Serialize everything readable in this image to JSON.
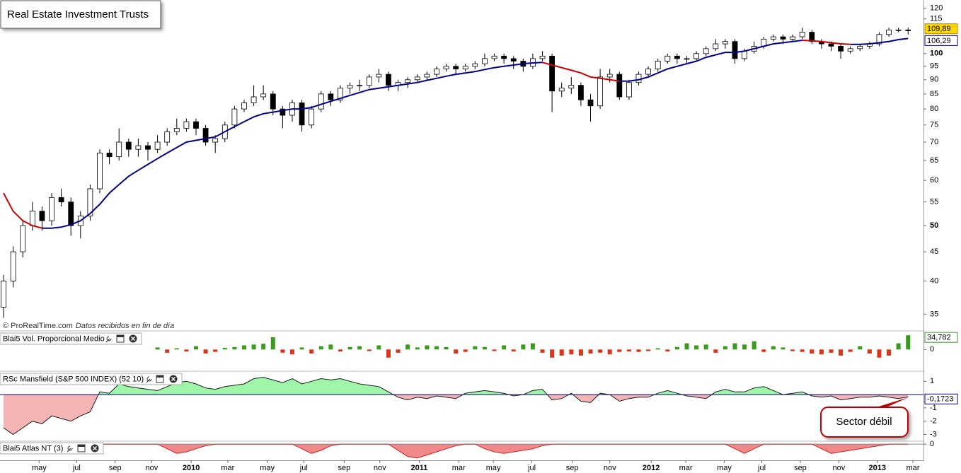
{
  "chart_data": [
    {
      "type": "candlestick",
      "title": "Real Estate Investment Trusts",
      "credit": "© ProRealTime.com",
      "credit_note": "Datos recibidos en fin de día",
      "open": [
        36,
        40,
        45,
        50,
        53,
        51,
        56,
        55,
        50,
        52,
        58,
        67,
        66,
        70,
        68,
        69,
        68,
        70,
        73,
        74,
        76,
        74,
        70,
        71,
        75,
        80,
        82,
        84,
        85,
        80,
        78,
        82,
        75,
        80,
        85,
        83,
        87,
        88,
        88,
        91,
        92,
        88,
        89,
        90,
        91,
        92,
        94,
        95,
        94,
        95,
        96,
        98,
        99,
        98,
        97,
        95,
        98,
        99,
        86,
        87,
        88,
        83,
        81,
        91,
        92,
        84,
        89,
        92,
        94,
        97,
        99,
        98,
        98,
        100,
        102,
        104,
        105,
        98,
        101,
        103,
        106,
        107,
        106,
        107,
        109,
        105,
        104,
        103,
        101,
        102,
        103,
        104,
        108,
        110,
        110
      ],
      "high": [
        41,
        46,
        51,
        55,
        54,
        57,
        58,
        56,
        53,
        59,
        68,
        68,
        74,
        71,
        71,
        70,
        72,
        74,
        77,
        77,
        77,
        75,
        72,
        76,
        81,
        83,
        88,
        88,
        86,
        81,
        83,
        83,
        81,
        86,
        86,
        88,
        89,
        90,
        92,
        94,
        93,
        90,
        91,
        92,
        93,
        95,
        96,
        96,
        96,
        97,
        100,
        100,
        100,
        99,
        98,
        100,
        101,
        100,
        89,
        91,
        89,
        85,
        94,
        94,
        93,
        90,
        93,
        95,
        98,
        100,
        100,
        99,
        101,
        103,
        106,
        106,
        106,
        102,
        105,
        107,
        108,
        108,
        108,
        111,
        110,
        106,
        105,
        104,
        103,
        104,
        105,
        109,
        111,
        111,
        111
      ],
      "low": [
        34.5,
        39,
        44,
        49,
        49,
        50,
        54,
        48,
        47.5,
        51,
        57,
        64,
        65,
        66,
        66,
        65,
        67,
        69,
        72,
        73,
        72,
        69,
        67,
        70,
        74,
        79,
        81,
        83,
        78,
        74,
        76,
        73,
        74,
        79,
        81,
        82,
        85,
        86,
        87,
        89,
        86,
        86,
        87,
        89,
        90,
        91,
        93,
        92,
        93,
        94,
        95,
        97,
        96,
        94,
        93,
        94,
        97,
        79,
        84,
        85,
        81,
        76,
        80,
        89,
        83,
        83,
        88,
        91,
        93,
        96,
        96,
        96,
        97,
        99,
        101,
        102,
        96,
        97,
        100,
        102,
        105,
        104,
        105,
        106,
        104,
        102,
        101,
        98,
        100,
        101,
        102,
        103,
        107,
        109,
        108
      ],
      "close": [
        40,
        45,
        50,
        53,
        51,
        56,
        55,
        50,
        52,
        58,
        67,
        66,
        70,
        68,
        69,
        68,
        70,
        73,
        74,
        76,
        74,
        70,
        71,
        75,
        80,
        82,
        84,
        85,
        80,
        78,
        82,
        75,
        80,
        85,
        83,
        87,
        88,
        88,
        91,
        92,
        88,
        89,
        90,
        91,
        92,
        94,
        95,
        94,
        95,
        96,
        98,
        99,
        98,
        97,
        95,
        98,
        99,
        86,
        87,
        88,
        83,
        81,
        91,
        92,
        84,
        89,
        92,
        94,
        97,
        99,
        98,
        98,
        100,
        102,
        104,
        105,
        98,
        101,
        103,
        106,
        107,
        106,
        107,
        109,
        105,
        104,
        103,
        101,
        102,
        103,
        104,
        108,
        110,
        110,
        109.89
      ],
      "last_close_label": "109,89",
      "up_color": "#ffffff",
      "down_color": "#000000",
      "label_color": "#ffd700",
      "moving_average": {
        "values": [
          57,
          53,
          51,
          50,
          49.5,
          49.5,
          49.7,
          50.2,
          51,
          52.5,
          54.5,
          57,
          59,
          61,
          62.5,
          64,
          65.5,
          67,
          68.5,
          70,
          70.5,
          71,
          71.5,
          73,
          74.5,
          76,
          77.5,
          78.5,
          79,
          79.5,
          80,
          80,
          80.5,
          81.5,
          82.5,
          83.5,
          84.5,
          85.5,
          86.5,
          87,
          87.5,
          88,
          88.5,
          89,
          89.8,
          90.5,
          91.3,
          92,
          92.5,
          93,
          93.8,
          94.5,
          95,
          95.5,
          96,
          96.3,
          96.5,
          95.5,
          94.5,
          93.5,
          92.5,
          91,
          90.5,
          90,
          89.5,
          89.5,
          90,
          91,
          92.5,
          94,
          95,
          96,
          97,
          98.5,
          99.5,
          100.5,
          100.5,
          101,
          102,
          103,
          104,
          104.5,
          105,
          105.5,
          105.3,
          105,
          104.5,
          104,
          103.8,
          103.8,
          104,
          104.5,
          105,
          105.8,
          106.29
        ],
        "last_label": "106,29",
        "rising_color": "#00008b",
        "falling_color": "#cc0000"
      },
      "log_scale": true,
      "ylim": [
        33,
        122
      ],
      "yticks": [
        35,
        40,
        45,
        50,
        55,
        60,
        65,
        70,
        75,
        80,
        85,
        90,
        95,
        100,
        115,
        120
      ],
      "xlim": [
        -0.37,
        95.6
      ],
      "xticks": [
        {
          "value": 3.7,
          "label": "may"
        },
        {
          "value": 7.6,
          "label": "jul"
        },
        {
          "value": 11.6,
          "label": "sep"
        },
        {
          "value": 15.4,
          "label": "nov"
        },
        {
          "value": 19.5,
          "label": "2010"
        },
        {
          "value": 23.3,
          "label": "mar"
        },
        {
          "value": 27.4,
          "label": "may"
        },
        {
          "value": 31.2,
          "label": "jul"
        },
        {
          "value": 35.4,
          "label": "sep"
        },
        {
          "value": 39.1,
          "label": "nov"
        },
        {
          "value": 43.2,
          "label": "2011"
        },
        {
          "value": 47.3,
          "label": "mar"
        },
        {
          "value": 50.9,
          "label": "may"
        },
        {
          "value": 54.9,
          "label": "jul"
        },
        {
          "value": 59.1,
          "label": "sep"
        },
        {
          "value": 63.0,
          "label": "nov"
        },
        {
          "value": 67.3,
          "label": "2012"
        },
        {
          "value": 70.9,
          "label": "mar"
        },
        {
          "value": 74.9,
          "label": "may"
        },
        {
          "value": 78.8,
          "label": "jul"
        },
        {
          "value": 82.8,
          "label": "sep"
        },
        {
          "value": 86.8,
          "label": "nov"
        },
        {
          "value": 90.8,
          "label": "2013"
        },
        {
          "value": 94.5,
          "label": "mar"
        }
      ]
    },
    {
      "type": "bar",
      "title": "Blai5 Vol. Proporcional Medio",
      "values": [
        null,
        null,
        null,
        null,
        null,
        null,
        null,
        null,
        null,
        null,
        null,
        null,
        null,
        null,
        null,
        null,
        5,
        -8,
        3,
        -5,
        8,
        -10,
        -6,
        4,
        6,
        10,
        12,
        14,
        30,
        -8,
        -12,
        5,
        -10,
        8,
        12,
        -5,
        6,
        8,
        -4,
        10,
        -20,
        -8,
        12,
        5,
        10,
        8,
        6,
        -10,
        -6,
        8,
        6,
        -4,
        10,
        -5,
        12,
        15,
        -8,
        -20,
        -15,
        -12,
        -15,
        -10,
        -8,
        -12,
        -6,
        -5,
        -6,
        -4,
        3,
        -5,
        6,
        15,
        10,
        12,
        -8,
        8,
        15,
        12,
        20,
        -6,
        8,
        5,
        -4,
        -6,
        -10,
        -12,
        -8,
        -15,
        -6,
        8,
        -10,
        -20,
        -15,
        15,
        34.782
      ],
      "last_label": "34,782",
      "positive_color": "#3a9a1e",
      "negative_color": "#d9361c",
      "ylim": [
        -48,
        42
      ],
      "yticks": [
        0
      ]
    },
    {
      "type": "area",
      "title": "RSc Mansfield (S&P 500 INDEX) (52 10)",
      "values": [
        -2.5,
        -3.0,
        -2.5,
        -2.0,
        -2.2,
        -1.6,
        -1.8,
        -2.0,
        -1.6,
        -1.3,
        0.2,
        0.1,
        0.8,
        0.6,
        0.5,
        0.4,
        0.3,
        0.6,
        0.9,
        1.0,
        0.8,
        0.5,
        0.4,
        0.6,
        0.7,
        0.8,
        1.2,
        1.3,
        1.1,
        0.9,
        1.2,
        0.8,
        1.0,
        1.2,
        1.1,
        1.2,
        1.0,
        0.8,
        0.7,
        0.6,
        0.2,
        -0.2,
        -0.4,
        -0.2,
        -0.3,
        -0.1,
        -0.2,
        -0.3,
        0.1,
        0.2,
        0.3,
        0.2,
        0.1,
        -0.1,
        0.0,
        0.3,
        0.4,
        -0.4,
        -0.3,
        0.1,
        -0.5,
        -0.6,
        0.1,
        0.0,
        -0.5,
        -0.3,
        -0.2,
        -0.2,
        0.1,
        0.3,
        0.1,
        -0.1,
        -0.2,
        -0.3,
        0.2,
        0.4,
        0.2,
        0.2,
        0.5,
        0.6,
        0.3,
        0.0,
        0.1,
        0.2,
        -0.1,
        -0.2,
        -0.1,
        -0.4,
        -0.3,
        -0.2,
        -0.2,
        -0.1,
        -0.2,
        -0.3,
        -0.1723
      ],
      "last_label": "-0,1723",
      "line_color": "#1a1a1a",
      "fill_above": "#9ff5a8",
      "fill_below": "#f5b5b5",
      "zero_color": "#00008b",
      "ylim": [
        -3.4,
        1.6
      ],
      "yticks": [
        1,
        -1,
        -2,
        -3
      ],
      "annotation": "Sector débil"
    },
    {
      "type": "area",
      "title": "Blai5 Atlas NT (3)",
      "values": [
        0,
        0,
        0,
        0,
        0,
        0,
        0,
        0,
        0,
        0,
        0,
        0,
        0,
        0,
        0,
        0,
        0,
        -0.3,
        -0.6,
        -0.5,
        -0.3,
        -0.1,
        0,
        0,
        0,
        0,
        0,
        0,
        0,
        0,
        0,
        -0.3,
        -0.6,
        -0.4,
        -0.1,
        0,
        0,
        0,
        0,
        0,
        0,
        -0.4,
        -0.8,
        -0.9,
        -0.7,
        -0.5,
        -0.3,
        -0.1,
        0,
        0,
        -0.3,
        -0.5,
        -0.6,
        -0.5,
        -0.4,
        -0.3,
        -0.1,
        0,
        0,
        0,
        0,
        0,
        0,
        0,
        0,
        0,
        0,
        0,
        0,
        0,
        0,
        0,
        0,
        0,
        0,
        0,
        -0.3,
        -0.6,
        -0.3,
        0,
        0,
        0,
        0,
        0,
        0,
        -0.3,
        -0.6,
        -0.5,
        -0.4,
        -0.3,
        -0.2,
        -0.1,
        0,
        0,
        0
      ],
      "line_color": "#cc2222",
      "fill_above": "#9ff5a8",
      "fill_below": "#f08a8a",
      "zero_color": "#888888",
      "ylim": [
        -1,
        0.1
      ],
      "yticks": [
        0
      ]
    }
  ]
}
